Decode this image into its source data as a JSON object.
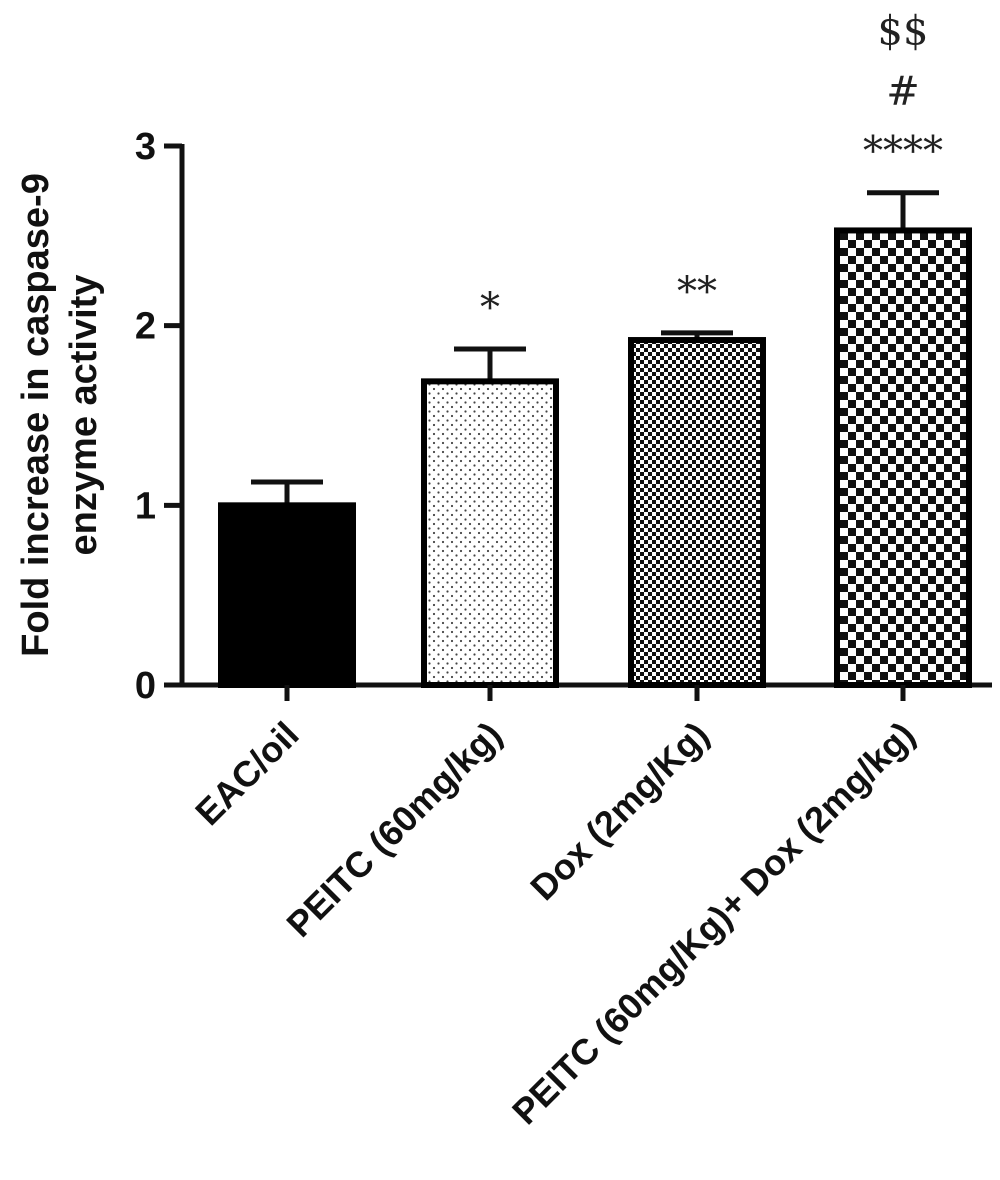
{
  "chart_data": {
    "type": "bar",
    "categories": [
      "EAC/oil",
      "PEITC (60mg/kg)",
      "Dox (2mg/Kg)",
      "PEITC (60mg/Kg)+ Dox (2mg/kg)"
    ],
    "values": [
      1.0,
      1.69,
      1.92,
      2.53
    ],
    "errors": [
      0.13,
      0.18,
      0.04,
      0.21
    ],
    "significance": [
      [],
      [
        "*"
      ],
      [
        "**"
      ],
      [
        "****",
        "#",
        "$$"
      ]
    ],
    "bar_patterns": [
      "solid-black",
      "sparse-dots",
      "fine-checker",
      "coarse-checker"
    ],
    "ylabel_lines": [
      "Fold increase in caspase-9",
      "enzyme activity"
    ],
    "xlabel": "",
    "ylim": [
      0,
      3
    ],
    "yticks": [
      0,
      1,
      2,
      3
    ],
    "grid": false,
    "legend": "none",
    "colors": {
      "bar_fill": "#000000",
      "bar_edge": "#000000",
      "background": "#ffffff"
    }
  }
}
